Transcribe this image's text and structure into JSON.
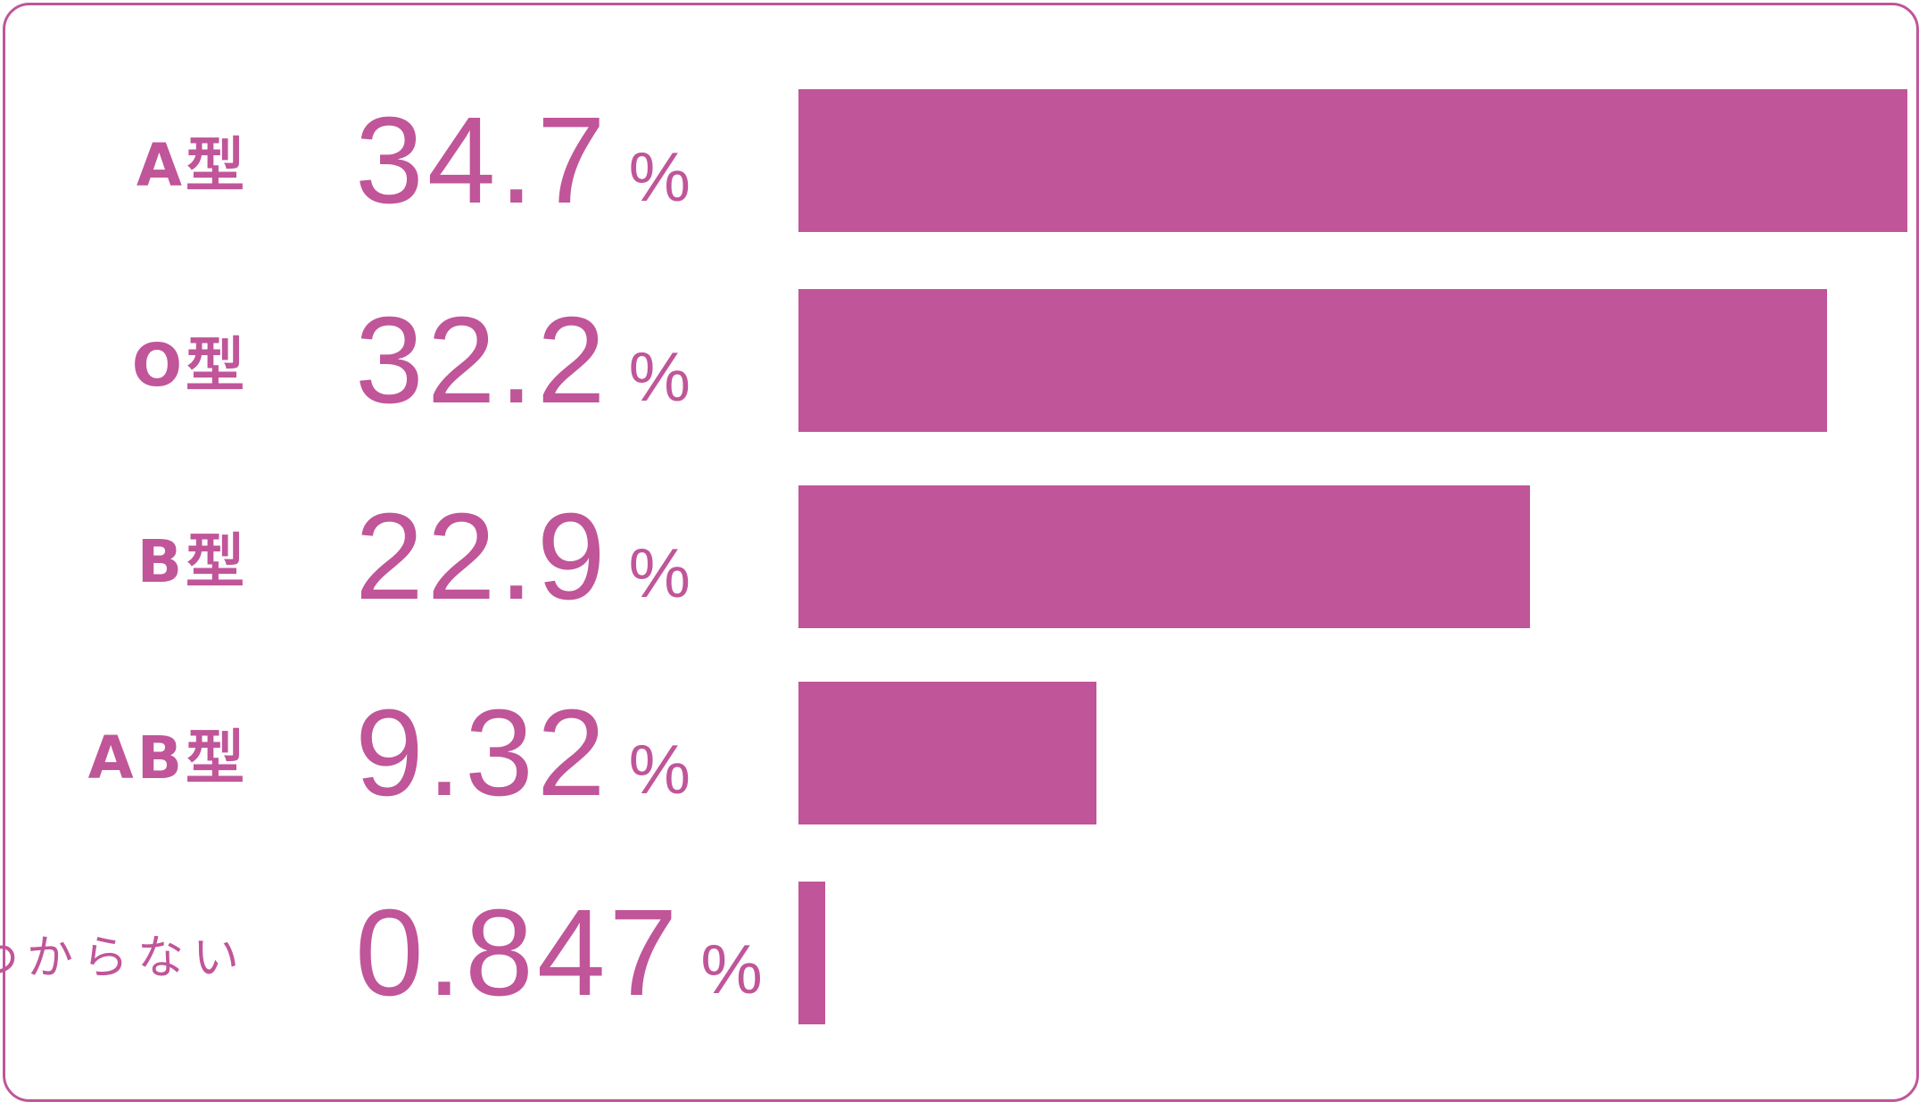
{
  "colors": {
    "accent": "#c05599",
    "background": "#ffffff"
  },
  "chart_data": {
    "type": "bar",
    "orientation": "horizontal",
    "categories": [
      "A型",
      "O型",
      "B型",
      "AB型",
      "わからない"
    ],
    "values": [
      34.7,
      32.2,
      22.9,
      9.32,
      0.847
    ],
    "value_labels": [
      "34.7",
      "32.2",
      "22.9",
      "9.32",
      "0.847"
    ],
    "unit": "%",
    "title": "",
    "xlabel": "",
    "ylabel": "",
    "xlim": [
      0,
      34.7
    ],
    "grid": false,
    "legend": "none"
  }
}
